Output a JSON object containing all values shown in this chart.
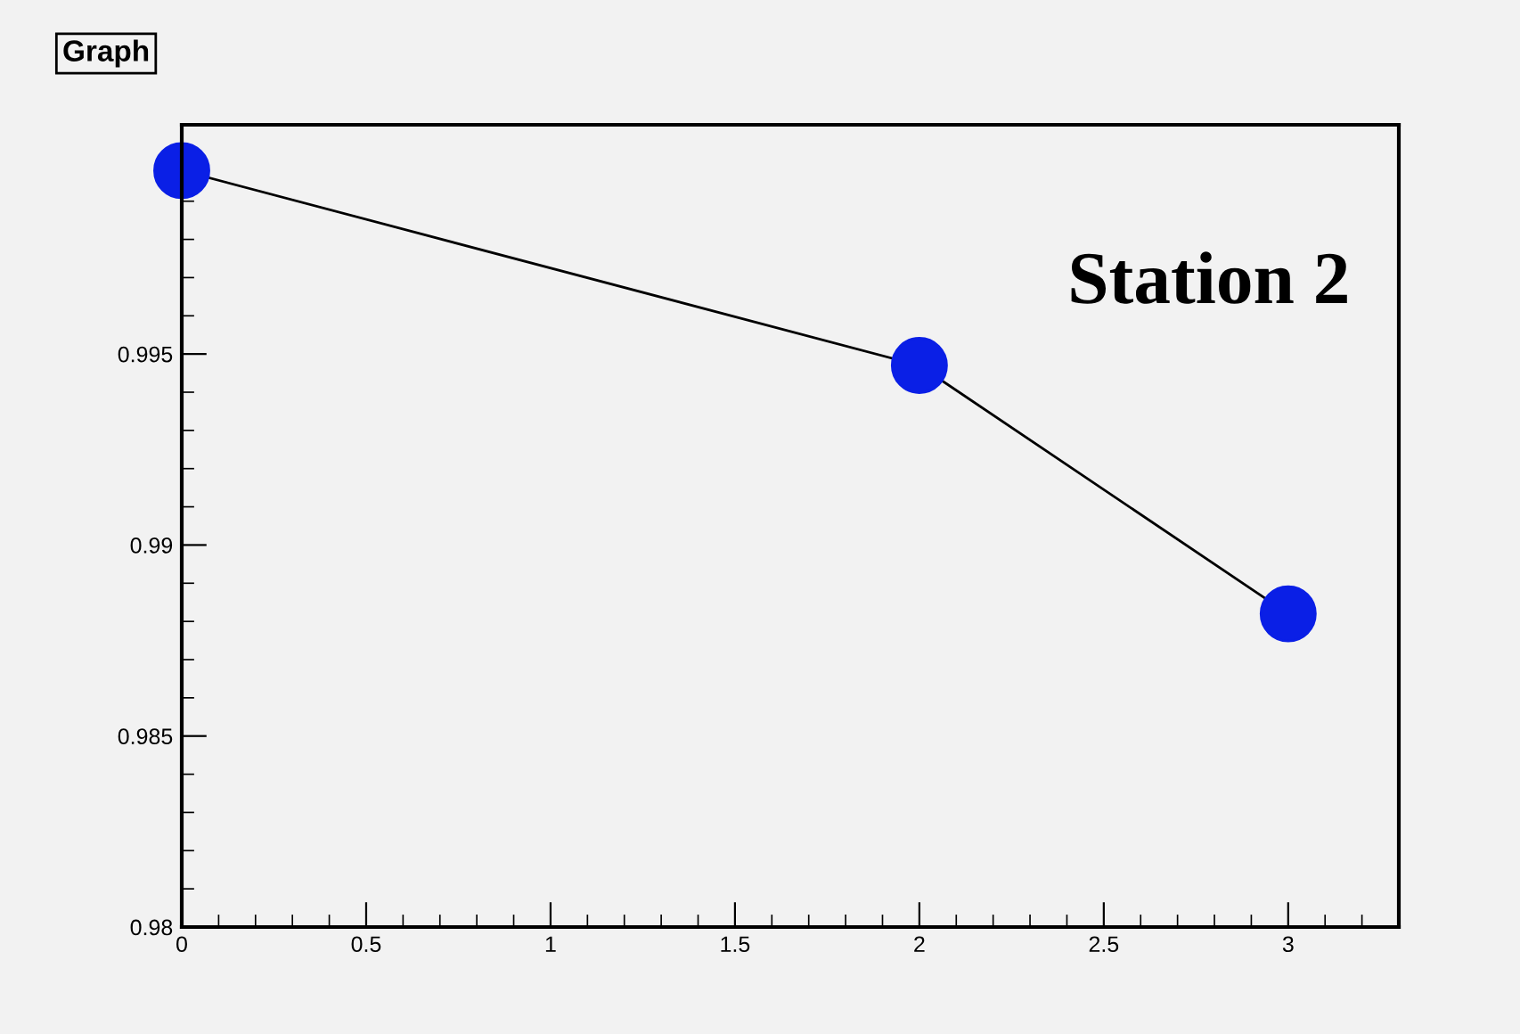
{
  "chart_data": {
    "type": "line",
    "title": "Graph",
    "x": [
      0,
      2,
      3
    ],
    "series": [
      {
        "color": "#0a1fe6",
        "values": [
          0.9998,
          0.9947,
          0.9882
        ]
      }
    ],
    "xlim": [
      0,
      3.3
    ],
    "xticks": [
      0,
      0.5,
      1,
      1.5,
      2,
      2.5,
      3
    ],
    "ylim": [
      0.98,
      1.001
    ],
    "yticks": [
      0.98,
      0.985,
      0.99,
      0.995
    ],
    "marker": "circle",
    "line_style": "solid",
    "grid": false,
    "legend": false,
    "annotations": [
      "Station 2"
    ]
  }
}
